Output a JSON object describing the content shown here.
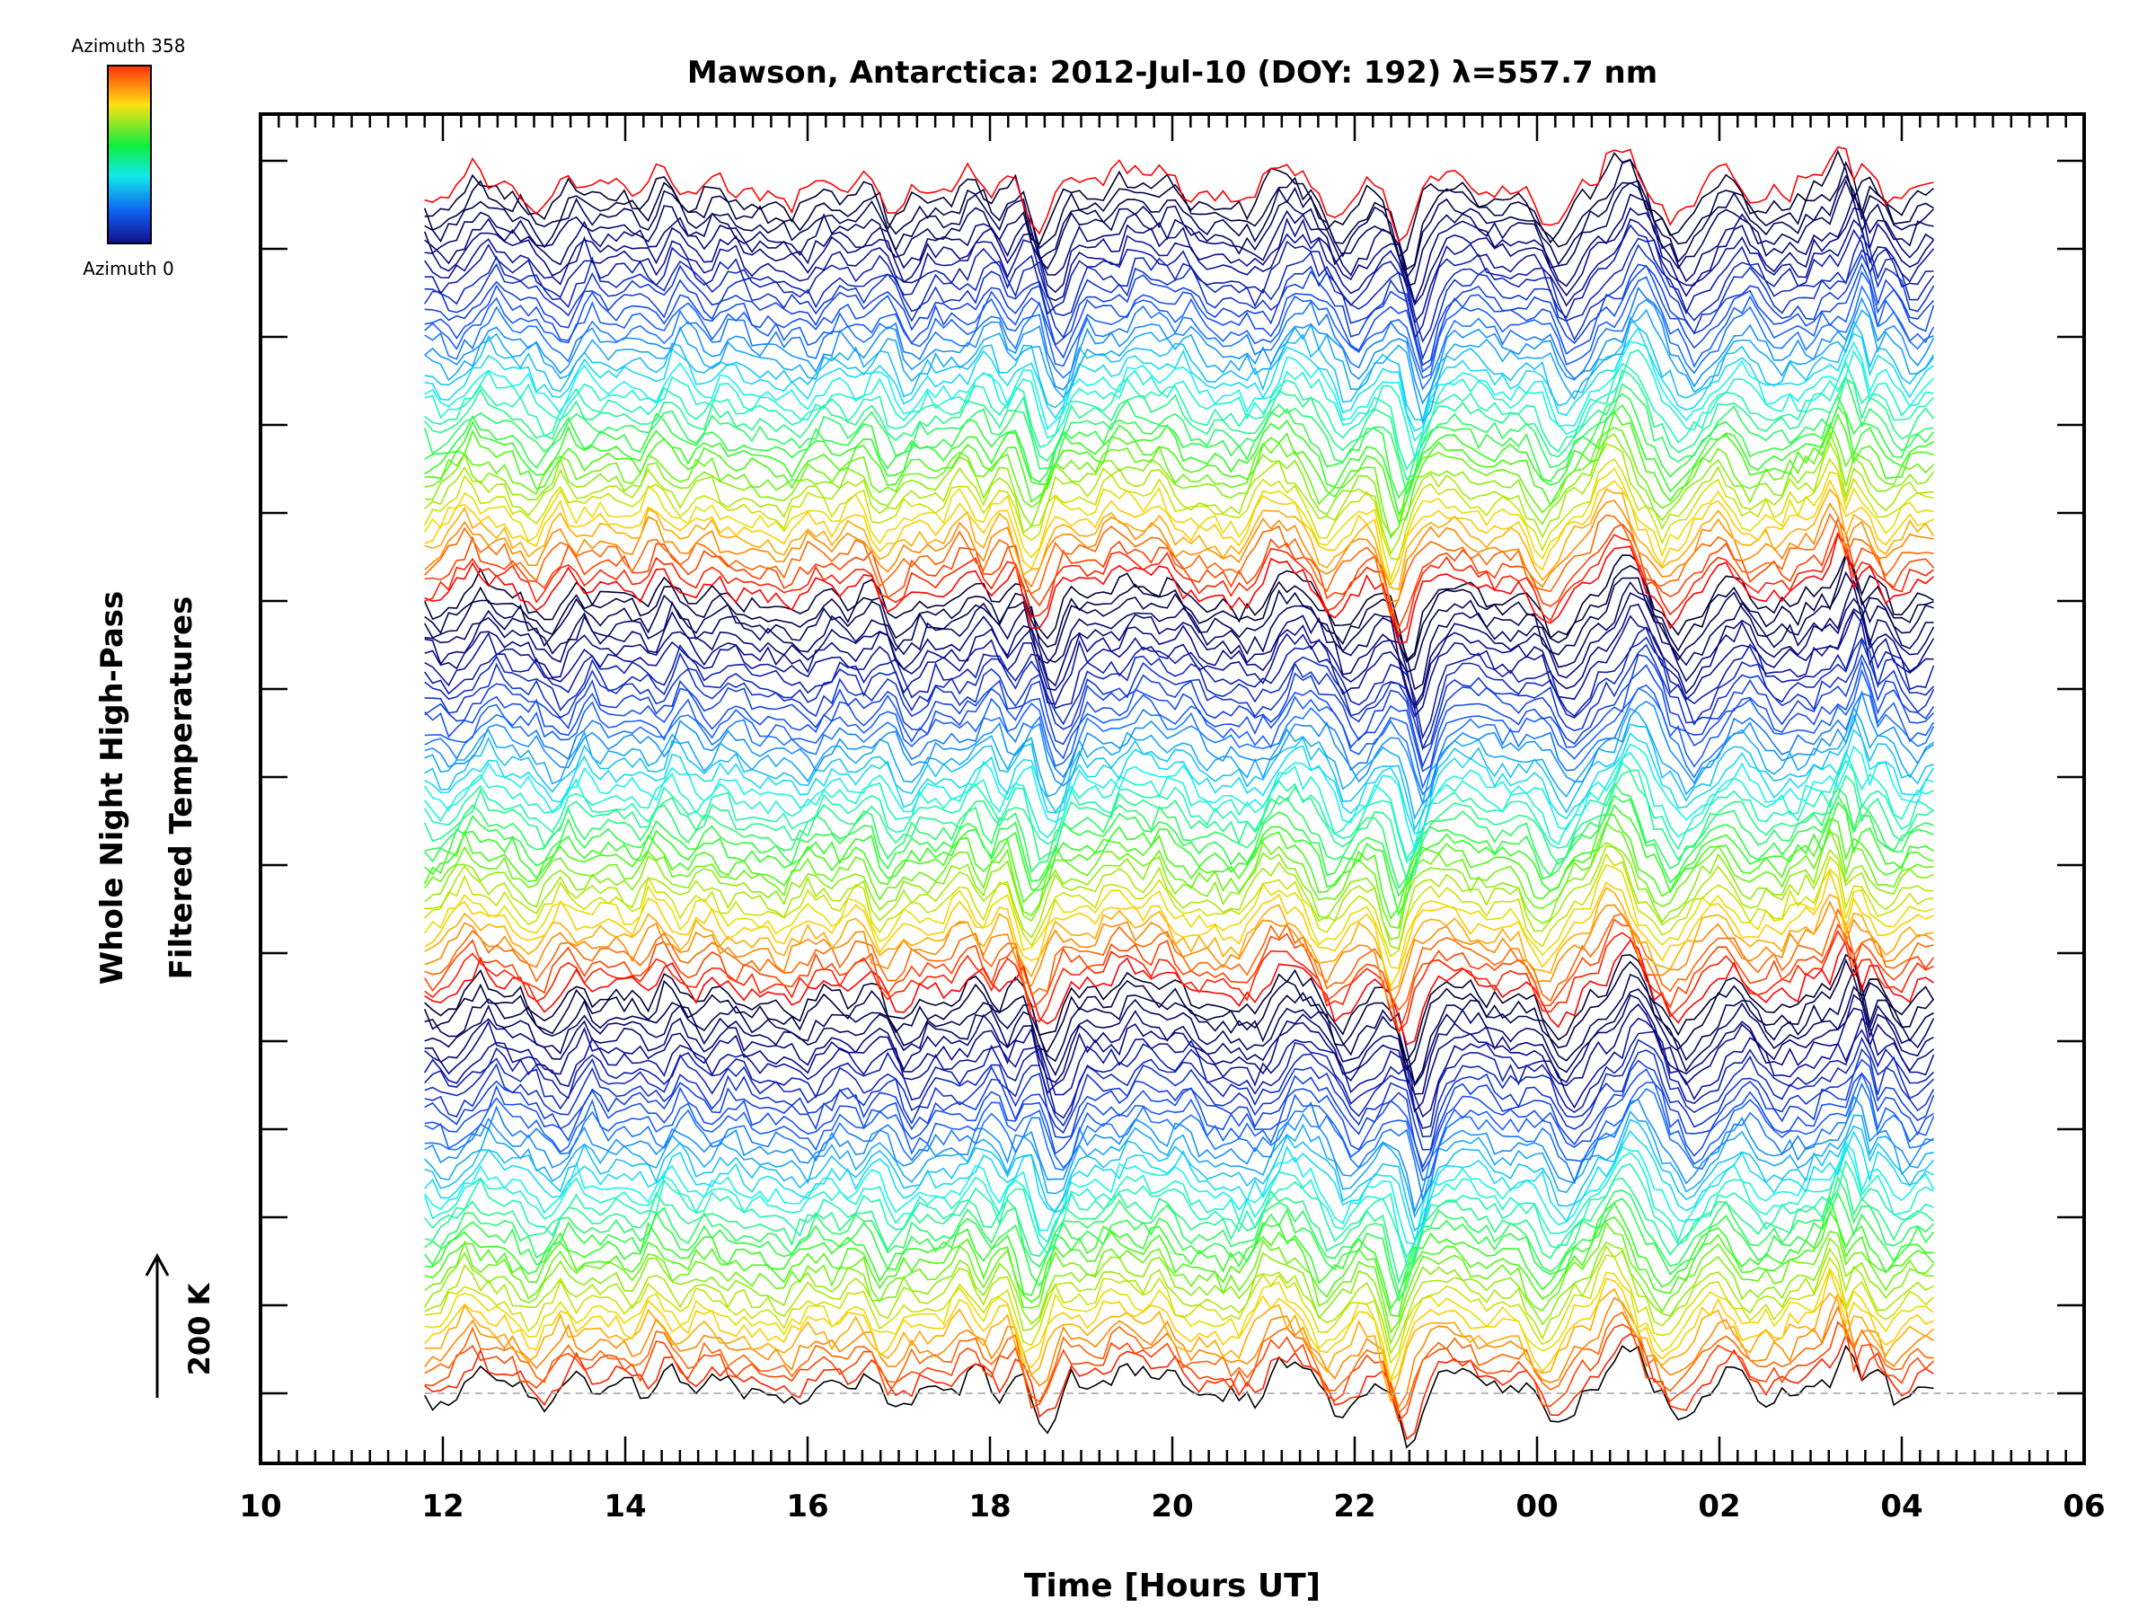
{
  "chart_data": {
    "type": "line",
    "title": "Mawson, Antarctica: 2012-Jul-10 (DOY: 192) λ=557.7 nm",
    "xlabel": "Time [Hours UT]",
    "ylabel": [
      "Whole Night High-Pass",
      "Filtered Temperatures"
    ],
    "xlim": [
      10,
      30
    ],
    "x_tick_labels": [
      "10",
      "12",
      "14",
      "16",
      "18",
      "20",
      "22",
      "00",
      "02",
      "04",
      "06"
    ],
    "x_tick_hours": [
      10,
      12,
      14,
      16,
      18,
      20,
      22,
      24,
      26,
      28,
      30
    ],
    "data_start_hour": 11.8,
    "data_end_hour": 28.35,
    "scale_bar": {
      "label": "200 K",
      "direction": "up"
    },
    "colorbar": {
      "max_label": "Azimuth 358",
      "min_label": "Azimuth 0",
      "colors": [
        "#ff3010",
        "#ffe010",
        "#10ee40",
        "#10e8e8",
        "#1060f0",
        "#10108a"
      ]
    },
    "n_traces": 115,
    "grid": false,
    "legend": "colorbar top-left",
    "baseline": "dashed gray at lowest trace",
    "signal_features": [
      [
        12.4,
        0.9,
        0.15
      ],
      [
        13.5,
        0.9,
        0.12
      ],
      [
        14.5,
        1.3,
        0.2
      ],
      [
        16.7,
        0.7,
        0.15
      ],
      [
        17.9,
        1.0,
        0.12
      ],
      [
        18.3,
        1.4,
        0.15
      ],
      [
        18.6,
        -1.6,
        0.18
      ],
      [
        19.5,
        1.2,
        0.4
      ],
      [
        21.4,
        1.0,
        0.3
      ],
      [
        21.8,
        -0.8,
        0.15
      ],
      [
        22.6,
        -2.2,
        0.15
      ],
      [
        23.1,
        1.4,
        0.2
      ],
      [
        24.2,
        -0.8,
        0.2
      ],
      [
        25.0,
        1.6,
        0.25
      ],
      [
        25.6,
        -1.0,
        0.15
      ],
      [
        26.0,
        0.8,
        0.2
      ],
      [
        27.0,
        0.9,
        0.15
      ],
      [
        27.4,
        1.8,
        0.12
      ],
      [
        27.7,
        1.2,
        0.1
      ],
      [
        28.2,
        0.8,
        0.1
      ]
    ]
  }
}
